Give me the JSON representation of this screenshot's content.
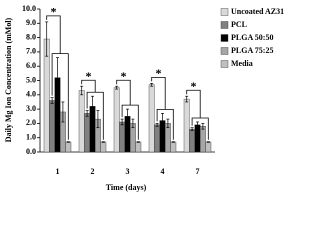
{
  "chart_data": {
    "type": "bar",
    "y_label": "Daily Mg Ion Concentration (mMol)",
    "x_label": "Time (days)",
    "categories": [
      "1",
      "2",
      "3",
      "4",
      "7"
    ],
    "series": [
      {
        "name": "Uncoated AZ31",
        "color": "#d9d9d9",
        "values": [
          7.9,
          4.3,
          4.5,
          4.7,
          3.7
        ],
        "errors": [
          1.2,
          0.3,
          0.1,
          0.1,
          0.2
        ]
      },
      {
        "name": "PCL",
        "color": "#808080",
        "values": [
          3.6,
          2.7,
          2.1,
          1.9,
          1.6
        ],
        "errors": [
          0.2,
          0.2,
          0.2,
          0.1,
          0.1
        ]
      },
      {
        "name": "PLGA 50:50",
        "color": "#000000",
        "values": [
          5.2,
          3.2,
          2.5,
          2.2,
          1.9
        ],
        "errors": [
          1.4,
          0.7,
          0.5,
          0.5,
          0.2
        ]
      },
      {
        "name": "PLGA 75:25",
        "color": "#a6a6a6",
        "values": [
          2.8,
          2.3,
          2.0,
          2.0,
          1.8
        ],
        "errors": [
          0.7,
          0.6,
          0.3,
          0.3,
          0.2
        ]
      },
      {
        "name": "Media",
        "color": "#bfbfbf",
        "values": [
          0.7,
          0.7,
          0.7,
          0.7,
          0.7
        ],
        "errors": [
          0.02,
          0.02,
          0.02,
          0.02,
          0.02
        ]
      }
    ],
    "significance_marks": [
      "*",
      "*",
      "*",
      "*",
      "*"
    ],
    "ylim": [
      0,
      10
    ],
    "yticks": [
      {
        "value": 0,
        "label": "0.0"
      },
      {
        "value": 1,
        "label": "1.0"
      },
      {
        "value": 2,
        "label": "2.0"
      },
      {
        "value": 3,
        "label": "3.0"
      },
      {
        "value": 4,
        "label": "4.0"
      },
      {
        "value": 5,
        "label": "5.0"
      },
      {
        "value": 6,
        "label": "6.0"
      },
      {
        "value": 7,
        "label": "7.0"
      },
      {
        "value": 8,
        "label": "8.0"
      },
      {
        "value": 9,
        "label": "9.0"
      },
      {
        "value": 10,
        "label": "10.0"
      }
    ],
    "legend": "top-right"
  }
}
